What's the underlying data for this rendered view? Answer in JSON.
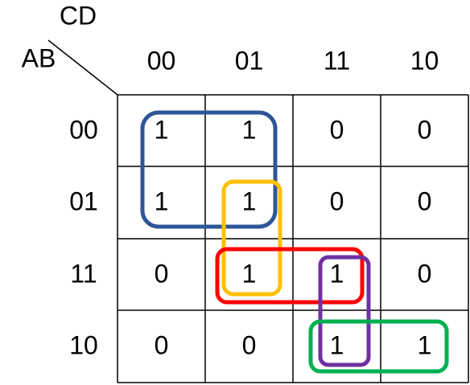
{
  "kmap": {
    "row_variable": "AB",
    "column_variable": "CD",
    "column_headers": [
      "00",
      "01",
      "11",
      "10"
    ],
    "row_headers": [
      "00",
      "01",
      "11",
      "10"
    ],
    "cells": [
      [
        1,
        1,
        0,
        0
      ],
      [
        1,
        1,
        0,
        0
      ],
      [
        0,
        1,
        1,
        0
      ],
      [
        0,
        0,
        1,
        1
      ]
    ]
  }
}
